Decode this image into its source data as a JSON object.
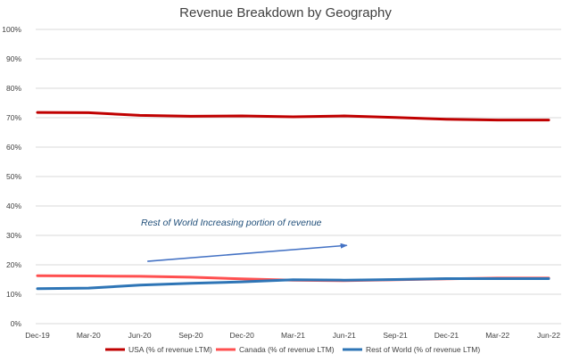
{
  "chart_data": {
    "type": "line",
    "title": "Revenue Breakdown by Geography",
    "xlabel": "",
    "ylabel": "",
    "categories": [
      "Dec-19",
      "Mar-20",
      "Jun-20",
      "Sep-20",
      "Dec-20",
      "Mar-21",
      "Jun-21",
      "Sep-21",
      "Dec-21",
      "Mar-22",
      "Jun-22"
    ],
    "y_ticks": [
      "0%",
      "10%",
      "20%",
      "30%",
      "40%",
      "50%",
      "60%",
      "70%",
      "80%",
      "90%",
      "100%"
    ],
    "ylim": [
      0,
      100
    ],
    "grid": "horizontal",
    "legend_position": "bottom",
    "series": [
      {
        "name": "USA (% of revenue LTM)",
        "color": "#c00000",
        "values": [
          71.8,
          71.7,
          70.8,
          70.5,
          70.6,
          70.3,
          70.6,
          70.1,
          69.5,
          69.2,
          69.2
        ]
      },
      {
        "name": "Canada (% of revenue LTM)",
        "color": "#ff5050",
        "values": [
          16.3,
          16.2,
          16.1,
          15.8,
          15.2,
          14.8,
          14.6,
          14.9,
          15.2,
          15.5,
          15.5
        ]
      },
      {
        "name": "Rest of World (% of revenue LTM)",
        "color": "#2e75b6",
        "values": [
          11.9,
          12.1,
          13.1,
          13.7,
          14.2,
          14.9,
          14.8,
          15.0,
          15.3,
          15.3,
          15.3
        ]
      }
    ],
    "annotation": {
      "text": "Rest of World Increasing portion of revenue",
      "color": "#1f4e79",
      "arrow_color": "#4472c4",
      "arrow_from": {
        "x_index": 2.15,
        "y": 21.2
      },
      "arrow_to": {
        "x_index": 6.05,
        "y": 26.6
      }
    }
  }
}
